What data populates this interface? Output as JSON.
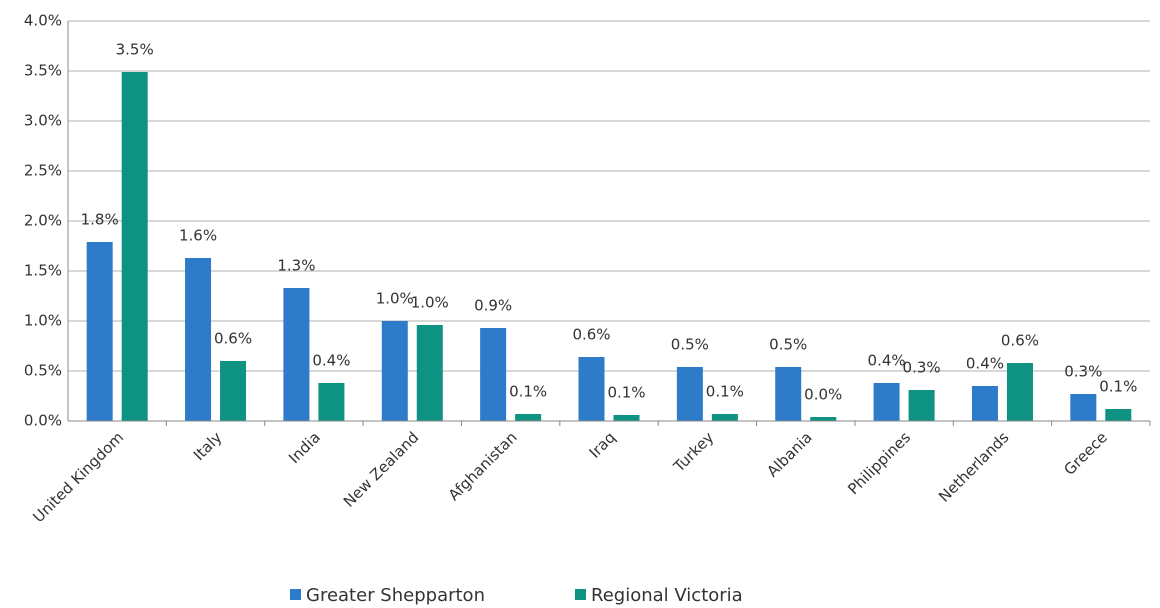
{
  "chart_data": {
    "type": "bar",
    "categories": [
      "United Kingdom",
      "Italy",
      "India",
      "New Zealand",
      "Afghanistan",
      "Iraq",
      "Turkey",
      "Albania",
      "Philippines",
      "Netherlands",
      "Greece"
    ],
    "series": [
      {
        "name": "Greater Shepparton",
        "color": "#2e7bc9",
        "values": [
          1.79,
          1.63,
          1.33,
          1.0,
          0.93,
          0.64,
          0.54,
          0.54,
          0.38,
          0.35,
          0.27
        ],
        "value_labels": [
          "1.8%",
          "1.6%",
          "1.3%",
          "1.0%",
          "0.9%",
          "0.6%",
          "0.5%",
          "0.5%",
          "0.4%",
          "0.4%",
          "0.3%"
        ]
      },
      {
        "name": "Regional Victoria",
        "color": "#0e9281",
        "values": [
          3.49,
          0.6,
          0.38,
          0.96,
          0.07,
          0.06,
          0.07,
          0.04,
          0.31,
          0.58,
          0.12
        ],
        "value_labels": [
          "3.5%",
          "0.6%",
          "0.4%",
          "1.0%",
          "0.1%",
          "0.1%",
          "0.1%",
          "0.0%",
          "0.3%",
          "0.6%",
          "0.1%"
        ]
      }
    ],
    "ylim": [
      0,
      4
    ],
    "yticks": [
      {
        "value": 0,
        "label": "0.0%"
      },
      {
        "value": 0.5,
        "label": "0.5%"
      },
      {
        "value": 1,
        "label": "1.0%"
      },
      {
        "value": 1.5,
        "label": "1.5%"
      },
      {
        "value": 2,
        "label": "2.0%"
      },
      {
        "value": 2.5,
        "label": "2.5%"
      },
      {
        "value": 3,
        "label": "3.0%"
      },
      {
        "value": 3.5,
        "label": "3.5%"
      },
      {
        "value": 4,
        "label": "4.0%"
      }
    ],
    "grid": true,
    "legend": "bottom"
  }
}
